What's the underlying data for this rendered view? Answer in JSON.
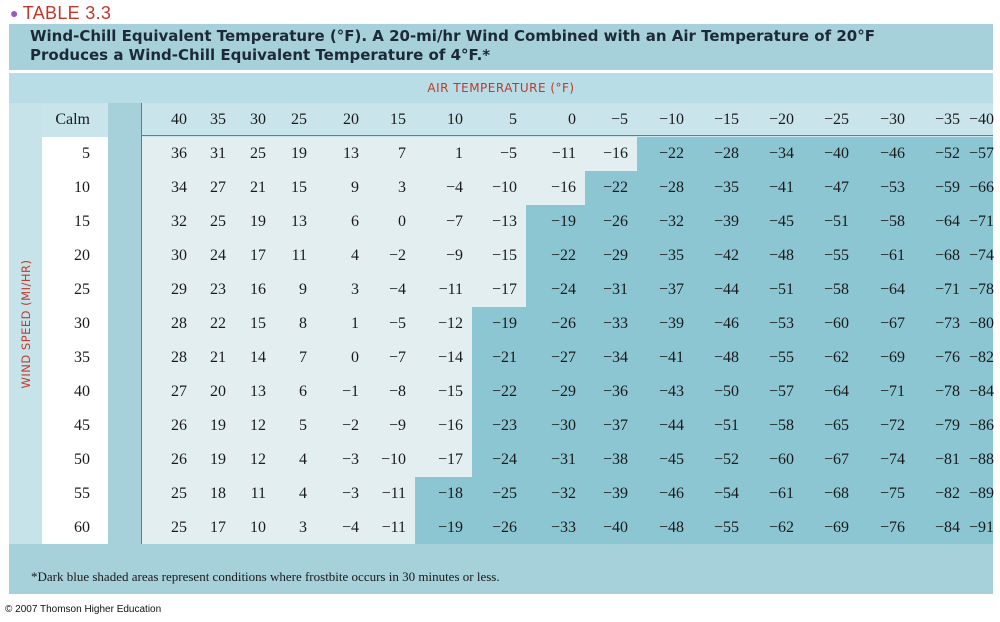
{
  "table_label": "TABLE 3.3",
  "title_line1": "Wind-Chill Equivalent Temperature (°F). A 20-mi/hr Wind Combined with an Air Temperature of 20°F",
  "title_line2": "Produces a Wind-Chill Equivalent Temperature of 4°F.*",
  "air_temperature_label": "AIR TEMPERATURE (°F)",
  "wind_speed_label": "WIND SPEED (MI/HR)",
  "calm_label": "Calm",
  "air_temperatures": [
    "40",
    "35",
    "30",
    "25",
    "20",
    "15",
    "10",
    "5",
    "0",
    "−5",
    "−10",
    "−15",
    "−20",
    "−25",
    "−30",
    "−35",
    "−40"
  ],
  "rows": [
    {
      "speed": "5",
      "values": [
        "36",
        "31",
        "25",
        "19",
        "13",
        "7",
        "1",
        "−5",
        "−11",
        "−16",
        "−22",
        "−28",
        "−34",
        "−40",
        "−46",
        "−52",
        "−57"
      ],
      "frostbite_start": 10
    },
    {
      "speed": "10",
      "values": [
        "34",
        "27",
        "21",
        "15",
        "9",
        "3",
        "−4",
        "−10",
        "−16",
        "−22",
        "−28",
        "−35",
        "−41",
        "−47",
        "−53",
        "−59",
        "−66"
      ],
      "frostbite_start": 9
    },
    {
      "speed": "15",
      "values": [
        "32",
        "25",
        "19",
        "13",
        "6",
        "0",
        "−7",
        "−13",
        "−19",
        "−26",
        "−32",
        "−39",
        "−45",
        "−51",
        "−58",
        "−64",
        "−71"
      ],
      "frostbite_start": 8
    },
    {
      "speed": "20",
      "values": [
        "30",
        "24",
        "17",
        "11",
        "4",
        "−2",
        "−9",
        "−15",
        "−22",
        "−29",
        "−35",
        "−42",
        "−48",
        "−55",
        "−61",
        "−68",
        "−74"
      ],
      "frostbite_start": 8
    },
    {
      "speed": "25",
      "values": [
        "29",
        "23",
        "16",
        "9",
        "3",
        "−4",
        "−11",
        "−17",
        "−24",
        "−31",
        "−37",
        "−44",
        "−51",
        "−58",
        "−64",
        "−71",
        "−78"
      ],
      "frostbite_start": 8
    },
    {
      "speed": "30",
      "values": [
        "28",
        "22",
        "15",
        "8",
        "1",
        "−5",
        "−12",
        "−19",
        "−26",
        "−33",
        "−39",
        "−46",
        "−53",
        "−60",
        "−67",
        "−73",
        "−80"
      ],
      "frostbite_start": 7
    },
    {
      "speed": "35",
      "values": [
        "28",
        "21",
        "14",
        "7",
        "0",
        "−7",
        "−14",
        "−21",
        "−27",
        "−34",
        "−41",
        "−48",
        "−55",
        "−62",
        "−69",
        "−76",
        "−82"
      ],
      "frostbite_start": 7
    },
    {
      "speed": "40",
      "values": [
        "27",
        "20",
        "13",
        "6",
        "−1",
        "−8",
        "−15",
        "−22",
        "−29",
        "−36",
        "−43",
        "−50",
        "−57",
        "−64",
        "−71",
        "−78",
        "−84"
      ],
      "frostbite_start": 7
    },
    {
      "speed": "45",
      "values": [
        "26",
        "19",
        "12",
        "5",
        "−2",
        "−9",
        "−16",
        "−23",
        "−30",
        "−37",
        "−44",
        "−51",
        "−58",
        "−65",
        "−72",
        "−79",
        "−86"
      ],
      "frostbite_start": 7
    },
    {
      "speed": "50",
      "values": [
        "26",
        "19",
        "12",
        "4",
        "−3",
        "−10",
        "−17",
        "−24",
        "−31",
        "−38",
        "−45",
        "−52",
        "−60",
        "−67",
        "−74",
        "−81",
        "−88"
      ],
      "frostbite_start": 7
    },
    {
      "speed": "55",
      "values": [
        "25",
        "18",
        "11",
        "4",
        "−3",
        "−11",
        "−18",
        "−25",
        "−32",
        "−39",
        "−46",
        "−54",
        "−61",
        "−68",
        "−75",
        "−82",
        "−89"
      ],
      "frostbite_start": 6
    },
    {
      "speed": "60",
      "values": [
        "25",
        "17",
        "10",
        "3",
        "−4",
        "−11",
        "−19",
        "−26",
        "−33",
        "−40",
        "−48",
        "−55",
        "−62",
        "−69",
        "−76",
        "−84",
        "−91"
      ],
      "frostbite_start": 6
    }
  ],
  "footnote": "*Dark blue shaded areas represent conditions where frostbite occurs in 30 minutes or less.",
  "copyright": "© 2007 Thomson Higher Education",
  "colors": {
    "panel": "#a6d0da",
    "header_band": "#c9e4eb",
    "light_cell": "#e3eef1",
    "frostbite_cell": "#8cc6d2",
    "accent_red": "#c0392b"
  }
}
